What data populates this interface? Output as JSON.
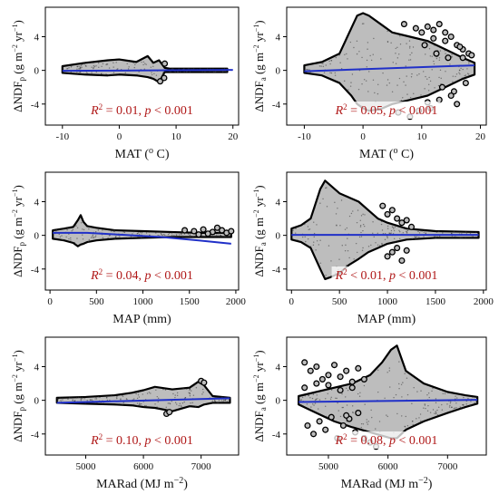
{
  "colors": {
    "points_fill": "#bdbdbd",
    "points_edge": "#000000",
    "fit_line": "#2030c8",
    "annotation_text": "#b01818",
    "annotation_bg": "#ffffff"
  },
  "chart_data": [
    {
      "type": "scatter",
      "panel": "a",
      "xlabel": "MAT (o C)",
      "xlabel_base": "MAT (",
      "xlabel_sup": "o",
      "xlabel_tail": " C)",
      "ylabel_main": "ΔNDF",
      "ylabel_sub": "p",
      "ylabel_units": "(g m−2 yr−1)",
      "xlim": [
        -13,
        21
      ],
      "ylim": [
        -6.5,
        7.5
      ],
      "xticks": [
        -10,
        0,
        10,
        20
      ],
      "xtick_labels": [
        "-10",
        "0",
        "10",
        "20"
      ],
      "yticks": [
        -4,
        0,
        4
      ],
      "ytick_labels": [
        "-4",
        "0",
        "4"
      ],
      "annotation": {
        "r2": "0.01",
        "p": "< 0.001"
      },
      "fit_line": {
        "x": [
          -10,
          20
        ],
        "y": [
          -0.05,
          0.05
        ]
      },
      "envelope": {
        "x": [
          -10,
          -6,
          -2,
          0,
          3,
          5,
          6,
          7,
          8,
          9,
          12,
          16,
          19
        ],
        "upper": [
          0.5,
          0.9,
          1.2,
          1.3,
          1.0,
          1.7,
          0.9,
          1.2,
          0.3,
          0.2,
          0.2,
          0.2,
          0.2
        ],
        "lower": [
          -0.3,
          -0.5,
          -0.6,
          -0.5,
          -0.6,
          -0.8,
          -1.0,
          -1.4,
          -0.2,
          -0.2,
          -0.2,
          -0.2,
          -0.2
        ]
      },
      "outliers": {
        "x": [
          7.2,
          8.0,
          7.9
        ],
        "y": [
          -1.3,
          0.8,
          -0.9
        ]
      }
    },
    {
      "type": "scatter",
      "panel": "b",
      "xlabel": "MAT (o C)",
      "xlabel_base": "MAT (",
      "xlabel_sup": "o",
      "xlabel_tail": " C)",
      "ylabel_main": "ΔNDF",
      "ylabel_sub": "a",
      "ylabel_units": "(g m−2 yr−1)",
      "xlim": [
        -13,
        21
      ],
      "ylim": [
        -6.5,
        7.5
      ],
      "xticks": [
        -10,
        0,
        10,
        20
      ],
      "xtick_labels": [
        "-10",
        "0",
        "10",
        "20"
      ],
      "yticks": [
        -4,
        0,
        4
      ],
      "ytick_labels": [
        "-4",
        "0",
        "4"
      ],
      "annotation": {
        "r2": "0.05",
        "p": "< 0.001"
      },
      "fit_line": {
        "x": [
          -10,
          19
        ],
        "y": [
          -0.1,
          0.6
        ]
      },
      "envelope": {
        "x": [
          -10,
          -7,
          -4,
          -2,
          -1,
          0,
          1,
          3,
          5,
          8,
          11,
          14,
          17,
          19
        ],
        "upper": [
          0.6,
          1.0,
          2.0,
          5.0,
          6.5,
          6.8,
          6.5,
          5.5,
          4.5,
          4.0,
          3.5,
          2.5,
          1.5,
          0.9
        ],
        "lower": [
          -0.3,
          -0.6,
          -1.5,
          -3.0,
          -4.0,
          -4.5,
          -4.8,
          -4.6,
          -4.0,
          -3.5,
          -3.0,
          -2.0,
          -1.0,
          -0.5
        ]
      },
      "outliers": {
        "x": [
          9,
          11,
          12,
          13,
          14,
          15,
          16,
          17,
          18,
          12.5,
          14.5,
          16.5,
          10,
          13,
          15.5,
          17.5,
          11.5,
          6,
          8,
          13.5,
          15,
          16,
          10.5,
          12,
          14,
          17,
          18.5,
          7,
          9.5,
          11
        ],
        "y": [
          5.0,
          5.2,
          4.8,
          5.5,
          3.5,
          4.0,
          3.0,
          2.5,
          2.0,
          2.0,
          1.5,
          2.8,
          4.5,
          -3.5,
          -2.5,
          -1.5,
          -4.5,
          -5.0,
          -5.5,
          -2.0,
          -3.0,
          -4.0,
          3.0,
          3.8,
          4.5,
          1.5,
          1.8,
          5.5,
          -4.8,
          -3.8
        ]
      }
    },
    {
      "type": "scatter",
      "panel": "c",
      "xlabel": "MAP (mm)",
      "ylabel_main": "ΔNDF",
      "ylabel_sub": "p",
      "ylabel_units": "(g m−2 yr−1)",
      "xlim": [
        -50,
        2030
      ],
      "ylim": [
        -6.5,
        7.5
      ],
      "xticks": [
        0,
        500,
        1000,
        1500,
        2000
      ],
      "xtick_labels": [
        "0",
        "500",
        "1000",
        "1500",
        "2000"
      ],
      "yticks": [
        -4,
        0,
        4
      ],
      "ytick_labels": [
        "-4",
        "0",
        "4"
      ],
      "annotation": {
        "r2": "0.04",
        "p": "< 0.001"
      },
      "fit_line": {
        "x": [
          30,
          400,
          800,
          1200,
          1600,
          1950
        ],
        "y": [
          0.3,
          0.3,
          0.05,
          -0.2,
          -0.6,
          -1.0
        ]
      },
      "envelope": {
        "x": [
          30,
          150,
          250,
          300,
          330,
          360,
          400,
          500,
          700,
          1000,
          1300,
          1600,
          1950
        ],
        "upper": [
          0.6,
          0.8,
          1.0,
          1.8,
          2.4,
          1.6,
          1.1,
          0.9,
          0.6,
          0.5,
          0.4,
          0.3,
          0.3
        ],
        "lower": [
          -0.4,
          -0.6,
          -0.9,
          -1.3,
          -1.1,
          -1.0,
          -0.8,
          -0.6,
          -0.4,
          -0.3,
          -0.2,
          -0.2,
          -0.2
        ]
      },
      "outliers": {
        "x": [
          1450,
          1550,
          1650,
          1750,
          1850,
          1900,
          1950,
          1800,
          1700,
          1600
        ],
        "y": [
          0.6,
          0.5,
          0.7,
          0.4,
          0.6,
          0.3,
          0.5,
          0.9,
          0.2,
          0.1
        ]
      }
    },
    {
      "type": "scatter",
      "panel": "d",
      "xlabel": "MAP (mm)",
      "ylabel_main": "ΔNDF",
      "ylabel_sub": "a",
      "ylabel_units": "(g m−2 yr−1)",
      "xlim": [
        -50,
        2030
      ],
      "ylim": [
        -6.5,
        7.5
      ],
      "xticks": [
        0,
        500,
        1000,
        1500,
        2000
      ],
      "xtick_labels": [
        "0",
        "500",
        "1000",
        "1500",
        "2000"
      ],
      "yticks": [
        -4,
        0,
        4
      ],
      "ytick_labels": [
        "-4",
        "0",
        "4"
      ],
      "annotation": {
        "r2": "< 0.01",
        "p": "< 0.001"
      },
      "fit_line": {
        "x": [
          0,
          1950
        ],
        "y": [
          0.05,
          0.05
        ]
      },
      "envelope": {
        "x": [
          0,
          100,
          200,
          300,
          350,
          400,
          500,
          600,
          700,
          800,
          900,
          1000,
          1200,
          1500,
          1950
        ],
        "upper": [
          0.8,
          1.2,
          2.0,
          5.5,
          6.5,
          6.0,
          5.0,
          4.5,
          4.0,
          3.0,
          2.0,
          1.5,
          0.8,
          0.5,
          0.4
        ],
        "lower": [
          -0.5,
          -0.8,
          -1.5,
          -4.0,
          -5.2,
          -5.0,
          -4.5,
          -3.5,
          -2.8,
          -2.0,
          -1.5,
          -1.0,
          -0.5,
          -0.3,
          -0.3
        ]
      },
      "outliers": {
        "x": [
          1000,
          1050,
          1100,
          1150,
          1200,
          1050,
          1100,
          1150,
          1000,
          950,
          1200,
          1250
        ],
        "y": [
          2.5,
          3.0,
          2.0,
          1.5,
          1.8,
          -2.0,
          -1.5,
          -3.0,
          -2.5,
          3.5,
          -1.8,
          1.0
        ]
      }
    },
    {
      "type": "scatter",
      "panel": "e",
      "xlabel": "MARad (MJ m−2)",
      "xlabel_base": "MARad (MJ m",
      "xlabel_sup": "−2",
      "xlabel_tail": ")",
      "ylabel_main": "ΔNDF",
      "ylabel_sub": "p",
      "ylabel_units": "(g m−2 yr−1)",
      "xlim": [
        4300,
        7650
      ],
      "ylim": [
        -6.5,
        7.5
      ],
      "xticks": [
        5000,
        6000,
        7000
      ],
      "xtick_labels": [
        "5000",
        "6000",
        "7000"
      ],
      "yticks": [
        -4,
        0,
        4
      ],
      "ytick_labels": [
        "-4",
        "0",
        "4"
      ],
      "annotation": {
        "r2": "0.10",
        "p": "< 0.001"
      },
      "fit_line": {
        "x": [
          4500,
          7500
        ],
        "y": [
          -0.3,
          0.25
        ]
      },
      "envelope": {
        "x": [
          4500,
          5000,
          5500,
          5800,
          6000,
          6200,
          6500,
          6800,
          6950,
          7050,
          7200,
          7500
        ],
        "upper": [
          0.3,
          0.4,
          0.6,
          0.9,
          1.2,
          1.6,
          1.3,
          1.5,
          2.2,
          1.8,
          0.5,
          0.3
        ],
        "lower": [
          -0.3,
          -0.4,
          -0.5,
          -0.6,
          -0.8,
          -0.9,
          -1.3,
          -0.7,
          -0.8,
          -0.5,
          -0.3,
          -0.3
        ]
      },
      "outliers": {
        "x": [
          6400,
          6450,
          7000,
          7050
        ],
        "y": [
          -1.6,
          -1.4,
          2.3,
          2.1
        ]
      }
    },
    {
      "type": "scatter",
      "panel": "f",
      "xlabel": "MARad (MJ m−2)",
      "xlabel_base": "MARad (MJ m",
      "xlabel_sup": "−2",
      "xlabel_tail": ")",
      "ylabel_main": "ΔNDF",
      "ylabel_sub": "a",
      "ylabel_units": "(g m−2 yr−1)",
      "xlim": [
        4300,
        7650
      ],
      "ylim": [
        -6.5,
        7.5
      ],
      "xticks": [
        5000,
        6000,
        7000
      ],
      "xtick_labels": [
        "5000",
        "6000",
        "7000"
      ],
      "yticks": [
        -4,
        0,
        4
      ],
      "ytick_labels": [
        "-4",
        "0",
        "4"
      ],
      "annotation": {
        "r2": "0.08",
        "p": "< 0.001"
      },
      "fit_line": {
        "x": [
          4500,
          7500
        ],
        "y": [
          -0.2,
          0.05
        ]
      },
      "envelope": {
        "x": [
          4500,
          4800,
          5100,
          5400,
          5700,
          5900,
          6050,
          6150,
          6300,
          6600,
          7000,
          7300,
          7500
        ],
        "upper": [
          0.5,
          1.0,
          1.5,
          2.0,
          3.0,
          4.5,
          6.0,
          6.5,
          3.5,
          2.0,
          1.0,
          0.6,
          0.4
        ],
        "lower": [
          -0.5,
          -1.5,
          -2.5,
          -3.2,
          -3.8,
          -4.2,
          -4.5,
          -4.5,
          -3.5,
          -2.5,
          -1.5,
          -0.8,
          -0.4
        ]
      },
      "outliers": {
        "x": [
          4600,
          4700,
          4800,
          4900,
          5000,
          5100,
          5200,
          5300,
          5400,
          5500,
          4650,
          4750,
          4850,
          4950,
          5050,
          5150,
          5250,
          5350,
          5450,
          5600,
          5700,
          5800,
          4600,
          4800,
          5000,
          5200,
          5400,
          5600,
          5500,
          5300
        ],
        "y": [
          4.5,
          3.5,
          4.0,
          2.5,
          3.0,
          4.2,
          2.8,
          3.5,
          2.2,
          3.8,
          -3.0,
          -4.0,
          -2.5,
          -3.5,
          -2.0,
          -4.5,
          -3.0,
          -2.2,
          -3.8,
          -4.5,
          -5.0,
          -5.5,
          1.5,
          2.0,
          1.8,
          1.2,
          1.5,
          2.5,
          -1.5,
          -1.8
        ]
      }
    }
  ]
}
